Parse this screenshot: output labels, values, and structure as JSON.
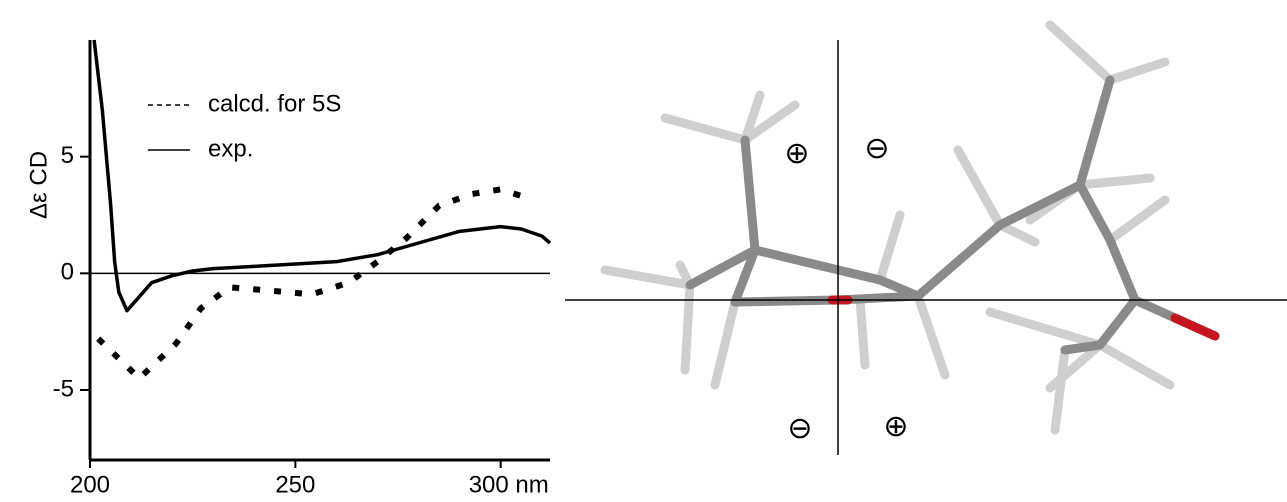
{
  "chart_data": {
    "type": "line",
    "ylabel": "Δε CD",
    "xlim": [
      200,
      312
    ],
    "ylim": [
      -8,
      10
    ],
    "xticks": [
      200,
      250,
      {
        "value": 300,
        "label": "300 nm"
      }
    ],
    "yticks": [
      5,
      0,
      -5
    ],
    "series": [
      {
        "name": "calcd. for 5S",
        "color": "#000000",
        "linestyle": "dotted",
        "x": [
          202,
          212,
          221,
          227,
          234,
          241,
          254,
          263,
          270,
          277,
          285,
          293,
          300,
          307
        ],
        "values": [
          -2.8,
          -4.5,
          -3,
          -1.5,
          -0.6,
          -0.7,
          -0.9,
          -0.4,
          0.5,
          1.5,
          2.9,
          3.4,
          3.6,
          3.2
        ]
      },
      {
        "name": "exp.",
        "color": "#000000",
        "linestyle": "solid",
        "x": [
          201,
          203,
          205,
          206,
          207,
          209,
          212,
          215,
          220,
          225,
          230,
          240,
          250,
          260,
          270,
          280,
          290,
          300,
          305,
          310,
          312
        ],
        "values": [
          10,
          7,
          3,
          0.5,
          -0.8,
          -1.6,
          -1,
          -0.4,
          -0.1,
          0.1,
          0.2,
          0.3,
          0.4,
          0.5,
          0.8,
          1.3,
          1.8,
          2.0,
          1.9,
          1.6,
          1.3
        ]
      }
    ]
  },
  "model": {
    "quadrant_signs": [
      "⊕",
      "⊖",
      "⊖",
      "⊕"
    ]
  }
}
